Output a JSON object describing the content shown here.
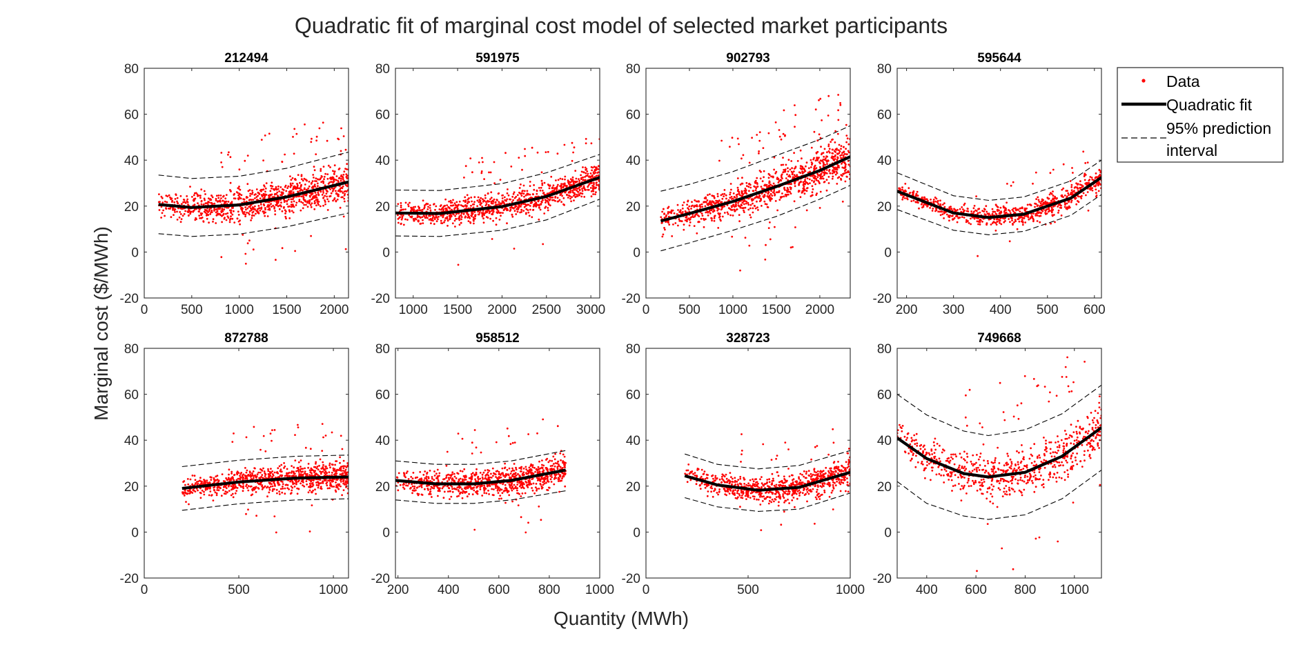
{
  "figure": {
    "title": "Quadratic fit of marginal cost model of selected market participants",
    "xlabel": "Quantity (MWh)",
    "ylabel": "Marginal cost ($/MWh)"
  },
  "legend": {
    "position": "top-right",
    "items": [
      "Data",
      "Quadratic fit",
      "95% prediction",
      "interval"
    ]
  },
  "colors": {
    "data": "#ff0000",
    "fit": "#000000",
    "interval": "#000000"
  },
  "chart_data": [
    {
      "type": "scatter",
      "title": "212494",
      "xlim": [
        0,
        2150
      ],
      "ylim": [
        -20,
        80
      ],
      "xticks": [
        0,
        500,
        1000,
        1500,
        2000
      ],
      "yticks": [
        -20,
        0,
        20,
        40,
        60,
        80
      ],
      "data_range": [
        150,
        2150
      ],
      "fit": [
        [
          150,
          20.7
        ],
        [
          500,
          19.4
        ],
        [
          1000,
          20.5
        ],
        [
          1500,
          24.0
        ],
        [
          2150,
          30.5
        ]
      ],
      "pi_lower": [
        [
          150,
          8
        ],
        [
          500,
          6.8
        ],
        [
          1000,
          7.8
        ],
        [
          1500,
          11
        ],
        [
          2150,
          17
        ]
      ],
      "pi_upper": [
        [
          150,
          33.5
        ],
        [
          500,
          32
        ],
        [
          1000,
          33
        ],
        [
          1500,
          36.5
        ],
        [
          2150,
          43.5
        ]
      ],
      "spread": 5,
      "count": 1000,
      "outliers": 50
    },
    {
      "type": "scatter",
      "title": "591975",
      "xlim": [
        800,
        3100
      ],
      "ylim": [
        -20,
        80
      ],
      "xticks": [
        1000,
        1500,
        2000,
        2500,
        3000
      ],
      "yticks": [
        -20,
        0,
        20,
        40,
        60,
        80
      ],
      "data_range": [
        800,
        3100
      ],
      "fit": [
        [
          800,
          17
        ],
        [
          1300,
          16.8
        ],
        [
          2000,
          19.8
        ],
        [
          2500,
          24.2
        ],
        [
          3100,
          32.5
        ]
      ],
      "pi_lower": [
        [
          800,
          7
        ],
        [
          1300,
          6.8
        ],
        [
          2000,
          9.5
        ],
        [
          2500,
          14
        ],
        [
          3100,
          23
        ]
      ],
      "pi_upper": [
        [
          800,
          27
        ],
        [
          1300,
          26.8
        ],
        [
          2000,
          29.8
        ],
        [
          2500,
          34.5
        ],
        [
          3100,
          42.5
        ]
      ],
      "spread": 4,
      "count": 1000,
      "outliers": 40
    },
    {
      "type": "scatter",
      "title": "902793",
      "xlim": [
        0,
        2350
      ],
      "ylim": [
        -20,
        80
      ],
      "xticks": [
        0,
        500,
        1000,
        1500,
        2000
      ],
      "yticks": [
        -20,
        0,
        20,
        40,
        60,
        80
      ],
      "data_range": [
        170,
        2350
      ],
      "fit": [
        [
          170,
          13.5
        ],
        [
          500,
          16.8
        ],
        [
          1000,
          22
        ],
        [
          1500,
          28.5
        ],
        [
          2000,
          35.5
        ],
        [
          2350,
          41.5
        ]
      ],
      "pi_lower": [
        [
          170,
          0.5
        ],
        [
          500,
          4
        ],
        [
          1000,
          9.5
        ],
        [
          1500,
          15.5
        ],
        [
          2000,
          23
        ],
        [
          2350,
          29
        ]
      ],
      "pi_upper": [
        [
          170,
          26.5
        ],
        [
          500,
          29.5
        ],
        [
          1000,
          35
        ],
        [
          1500,
          42
        ],
        [
          2000,
          49
        ],
        [
          2350,
          55
        ]
      ],
      "spread": 5.5,
      "count": 1000,
      "outliers": 60
    },
    {
      "type": "scatter",
      "title": "595644",
      "xlim": [
        180,
        615
      ],
      "ylim": [
        -20,
        80
      ],
      "xticks": [
        200,
        300,
        400,
        500,
        600
      ],
      "yticks": [
        -20,
        0,
        20,
        40,
        60,
        80
      ],
      "data_range": [
        180,
        615
      ],
      "fit": [
        [
          180,
          26.5
        ],
        [
          300,
          17
        ],
        [
          375,
          15
        ],
        [
          450,
          16.5
        ],
        [
          550,
          23.5
        ],
        [
          615,
          32.5
        ]
      ],
      "pi_lower": [
        [
          180,
          18.5
        ],
        [
          300,
          9.5
        ],
        [
          375,
          7.5
        ],
        [
          450,
          9
        ],
        [
          550,
          16
        ],
        [
          615,
          25
        ]
      ],
      "pi_upper": [
        [
          180,
          34.5
        ],
        [
          300,
          24.5
        ],
        [
          375,
          22.5
        ],
        [
          450,
          24
        ],
        [
          550,
          31
        ],
        [
          615,
          40
        ]
      ],
      "spread": 3,
      "count": 800,
      "outliers": 20
    },
    {
      "type": "scatter",
      "title": "872788",
      "xlim": [
        0,
        1080
      ],
      "ylim": [
        -20,
        80
      ],
      "xticks": [
        0,
        500,
        1000
      ],
      "yticks": [
        -20,
        0,
        20,
        40,
        60,
        80
      ],
      "data_range": [
        200,
        1080
      ],
      "fit": [
        [
          200,
          19
        ],
        [
          500,
          21.8
        ],
        [
          800,
          23.5
        ],
        [
          1080,
          24
        ]
      ],
      "pi_lower": [
        [
          200,
          9.5
        ],
        [
          500,
          12.3
        ],
        [
          800,
          14
        ],
        [
          1080,
          14.5
        ]
      ],
      "pi_upper": [
        [
          200,
          28.5
        ],
        [
          500,
          31.3
        ],
        [
          800,
          33
        ],
        [
          1080,
          33.5
        ]
      ],
      "spread": 4,
      "count": 900,
      "outliers": 30
    },
    {
      "type": "scatter",
      "title": "958512",
      "xlim": [
        190,
        1000
      ],
      "ylim": [
        -20,
        80
      ],
      "xticks": [
        200,
        400,
        600,
        800,
        1000
      ],
      "yticks": [
        -20,
        0,
        20,
        40,
        60,
        80
      ],
      "data_range": [
        190,
        865
      ],
      "fit": [
        [
          190,
          22.5
        ],
        [
          350,
          21
        ],
        [
          500,
          21
        ],
        [
          650,
          22.5
        ],
        [
          865,
          27
        ]
      ],
      "pi_lower": [
        [
          190,
          14
        ],
        [
          350,
          12.5
        ],
        [
          500,
          12.5
        ],
        [
          650,
          14
        ],
        [
          865,
          18
        ]
      ],
      "pi_upper": [
        [
          190,
          31
        ],
        [
          350,
          29.5
        ],
        [
          500,
          29.5
        ],
        [
          650,
          31
        ],
        [
          865,
          35.5
        ]
      ],
      "spread": 4,
      "count": 900,
      "outliers": 25
    },
    {
      "type": "scatter",
      "title": "328723",
      "xlim": [
        0,
        1000
      ],
      "ylim": [
        -20,
        80
      ],
      "xticks": [
        0,
        500,
        1000
      ],
      "yticks": [
        -20,
        0,
        20,
        40,
        60,
        80
      ],
      "data_range": [
        190,
        1000
      ],
      "fit": [
        [
          190,
          24.5
        ],
        [
          350,
          20.5
        ],
        [
          550,
          18.2
        ],
        [
          750,
          19.5
        ],
        [
          1000,
          26
        ]
      ],
      "pi_lower": [
        [
          190,
          15
        ],
        [
          350,
          11
        ],
        [
          550,
          9
        ],
        [
          750,
          10
        ],
        [
          1000,
          17
        ]
      ],
      "pi_upper": [
        [
          190,
          34
        ],
        [
          350,
          29.5
        ],
        [
          550,
          27.5
        ],
        [
          750,
          29
        ],
        [
          1000,
          35.5
        ]
      ],
      "spread": 4,
      "count": 800,
      "outliers": 20
    },
    {
      "type": "scatter",
      "title": "749668",
      "xlim": [
        280,
        1110
      ],
      "ylim": [
        -20,
        80
      ],
      "xticks": [
        400,
        600,
        800,
        1000
      ],
      "yticks": [
        -20,
        0,
        20,
        40,
        60,
        80
      ],
      "data_range": [
        280,
        1110
      ],
      "fit": [
        [
          280,
          41
        ],
        [
          400,
          32
        ],
        [
          550,
          25.5
        ],
        [
          650,
          24
        ],
        [
          800,
          26
        ],
        [
          950,
          33
        ],
        [
          1110,
          45.5
        ]
      ],
      "pi_lower": [
        [
          280,
          22
        ],
        [
          400,
          12.5
        ],
        [
          550,
          7
        ],
        [
          650,
          5.5
        ],
        [
          800,
          7.5
        ],
        [
          950,
          14.5
        ],
        [
          1110,
          27
        ]
      ],
      "pi_upper": [
        [
          280,
          60
        ],
        [
          400,
          51
        ],
        [
          550,
          44
        ],
        [
          650,
          42
        ],
        [
          800,
          44.5
        ],
        [
          950,
          51.5
        ],
        [
          1110,
          64
        ]
      ],
      "spread": 7,
      "count": 700,
      "outliers": 40
    }
  ]
}
